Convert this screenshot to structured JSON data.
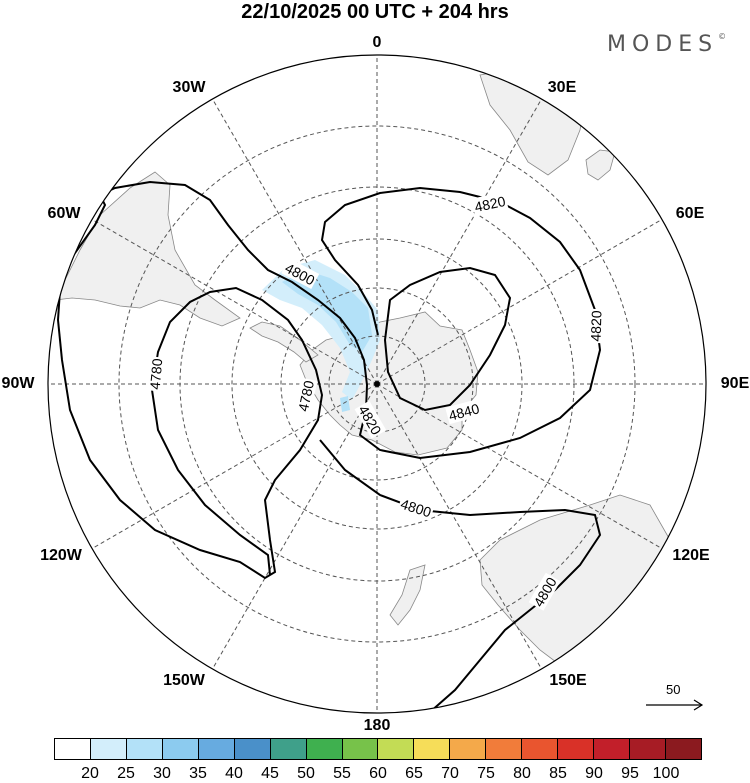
{
  "header": {
    "title": "22/10/2025  00 UTC  + 204 hrs",
    "brand": "MODES",
    "brand_mark": "©"
  },
  "map": {
    "projection": "south polar stereographic",
    "longitude_labels": [
      "0",
      "30E",
      "60E",
      "90E",
      "120E",
      "150E",
      "180",
      "150W",
      "120W",
      "90W",
      "60W",
      "30W"
    ],
    "contour_labels": [
      "4820",
      "4800",
      "4820",
      "4780",
      "4780",
      "4820",
      "4840",
      "4800",
      "4800"
    ],
    "land_color": "#f0f0f0",
    "contour_color": "#000000"
  },
  "reference_vector": {
    "label": "50"
  },
  "colorbar": {
    "ticks": [
      "20",
      "25",
      "30",
      "35",
      "40",
      "45",
      "50",
      "55",
      "60",
      "65",
      "70",
      "75",
      "80",
      "85",
      "90",
      "95",
      "100"
    ],
    "colors": [
      "#ffffff",
      "#d3eefb",
      "#b3e1f8",
      "#8ccbef",
      "#67abe0",
      "#4a90c9",
      "#3fa08a",
      "#3fb04f",
      "#77c24a",
      "#c3dc55",
      "#f6dd59",
      "#f4a94a",
      "#f17c3a",
      "#e9552f",
      "#d93128",
      "#c21f2a",
      "#a71c25",
      "#8b1a1f"
    ]
  }
}
